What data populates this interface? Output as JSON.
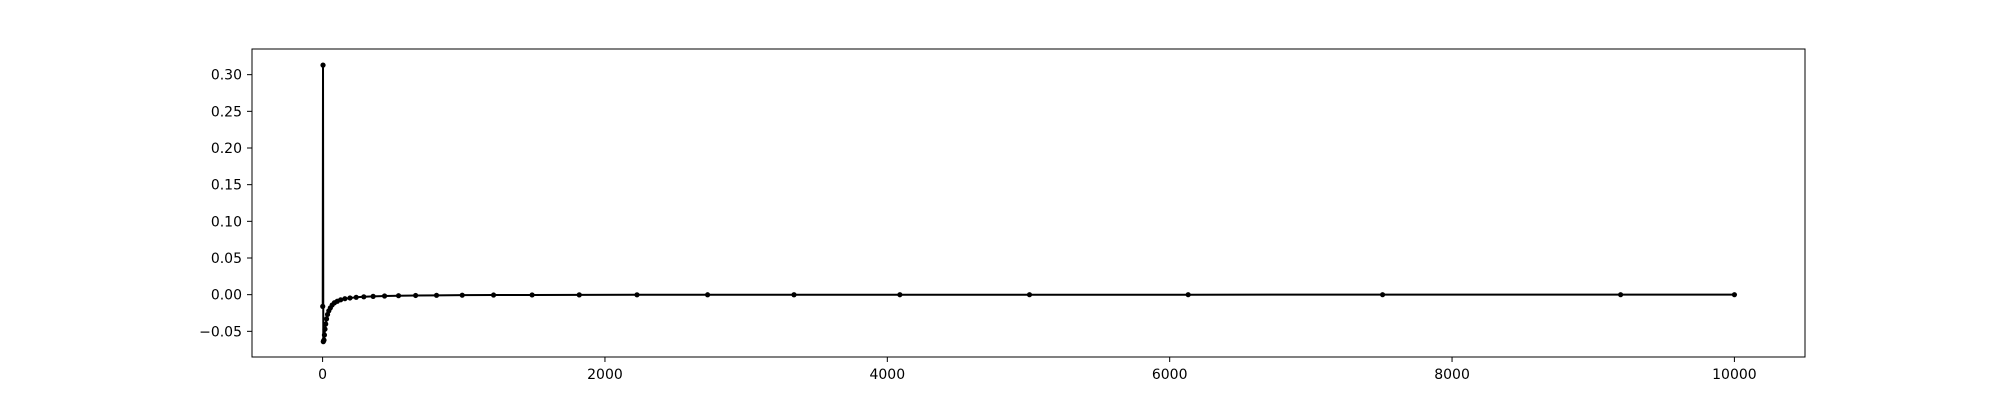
{
  "chart_data": {
    "type": "line",
    "title": "",
    "xlabel": "",
    "ylabel": "",
    "xlim": [
      -500,
      10500
    ],
    "ylim": [
      -0.085,
      0.335
    ],
    "xticks": [
      0,
      2000,
      4000,
      6000,
      8000,
      10000
    ],
    "xtick_labels": [
      "0",
      "2000",
      "4000",
      "6000",
      "8000",
      "10000"
    ],
    "yticks": [
      -0.05,
      0.0,
      0.05,
      0.1,
      0.15,
      0.2,
      0.25,
      0.3
    ],
    "ytick_labels": [
      "−0.05",
      "0.00",
      "0.05",
      "0.10",
      "0.15",
      "0.20",
      "0.25",
      "0.30"
    ],
    "grid": false,
    "legend": false,
    "line_color": "#000000",
    "series": [
      {
        "x": [
          1,
          3,
          5,
          7,
          10,
          13,
          17,
          22,
          28,
          35,
          44,
          55,
          68,
          84,
          104,
          128,
          158,
          194,
          238,
          292,
          358,
          439,
          538,
          659,
          807,
          989,
          1211,
          1484,
          1818,
          2227,
          2727,
          3339,
          4089,
          5007,
          6131,
          7508,
          9194,
          10000
        ],
        "y": [
          -0.016,
          0.313,
          -0.064,
          -0.063,
          -0.062,
          -0.055,
          -0.047,
          -0.04,
          -0.033,
          -0.027,
          -0.022,
          -0.018,
          -0.014,
          -0.011,
          -0.009,
          -0.007,
          -0.0055,
          -0.0045,
          -0.0036,
          -0.0029,
          -0.0023,
          -0.0018,
          -0.0014,
          -0.0011,
          -0.0009,
          -0.0007,
          -0.0005,
          -0.0004,
          -0.0003,
          -0.0002,
          -0.00015,
          -0.0001,
          -7e-05,
          -5e-05,
          -3e-05,
          -2e-05,
          -1e-05,
          0.0
        ]
      }
    ]
  }
}
